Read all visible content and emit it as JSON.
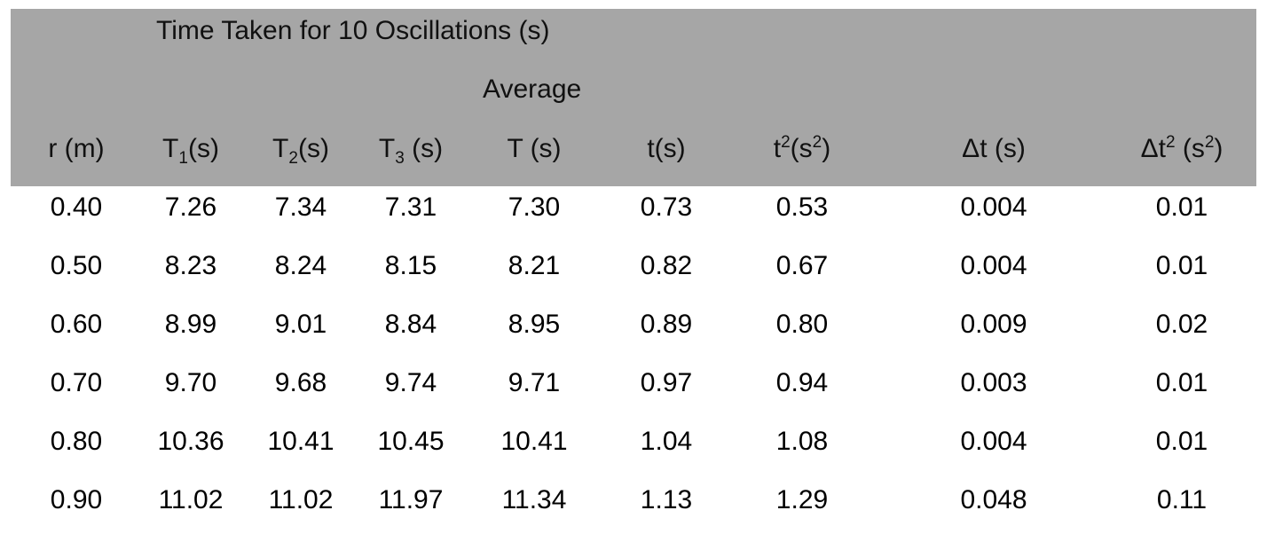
{
  "header": {
    "group_title": "Time Taken for 10 Oscillations (s)",
    "average_label": "Average",
    "columns": [
      {
        "main": "r (m)",
        "sub": "",
        "sup": "",
        "tail": "",
        "sup2": "",
        "end": ""
      },
      {
        "main": "T",
        "sub": "1",
        "sup": "",
        "tail": "(s)",
        "sup2": "",
        "end": ""
      },
      {
        "main": "T",
        "sub": "2",
        "sup": "",
        "tail": "(s)",
        "sup2": "",
        "end": ""
      },
      {
        "main": "T",
        "sub": "3",
        "sup": "",
        "tail": " (s)",
        "sup2": "",
        "end": ""
      },
      {
        "main": "T (s)",
        "sub": "",
        "sup": "",
        "tail": "",
        "sup2": "",
        "end": ""
      },
      {
        "main": "t(s)",
        "sub": "",
        "sup": "",
        "tail": "",
        "sup2": "",
        "end": ""
      },
      {
        "main": "t",
        "sub": "",
        "sup": "2",
        "tail": "(s",
        "sup2": "2",
        "end": ")"
      },
      {
        "main": "Δt (s)",
        "sub": "",
        "sup": "",
        "tail": "",
        "sup2": "",
        "end": ""
      },
      {
        "main": "Δt",
        "sub": "",
        "sup": "2",
        "tail": " (s",
        "sup2": "2",
        "end": ")"
      }
    ]
  },
  "rows": [
    [
      "0.40",
      "7.26",
      "7.34",
      "7.31",
      "7.30",
      "0.73",
      "0.53",
      "0.004",
      "0.01"
    ],
    [
      "0.50",
      "8.23",
      "8.24",
      "8.15",
      "8.21",
      "0.82",
      "0.67",
      "0.004",
      "0.01"
    ],
    [
      "0.60",
      "8.99",
      "9.01",
      "8.84",
      "8.95",
      "0.89",
      "0.80",
      "0.009",
      "0.02"
    ],
    [
      "0.70",
      "9.70",
      "9.68",
      "9.74",
      "9.71",
      "0.97",
      "0.94",
      "0.003",
      "0.01"
    ],
    [
      "0.80",
      "10.36",
      "10.41",
      "10.45",
      "10.41",
      "1.04",
      "1.08",
      "0.004",
      "0.01"
    ],
    [
      "0.90",
      "11.02",
      "11.02",
      "11.97",
      "11.34",
      "1.13",
      "1.29",
      "0.048",
      "0.11"
    ]
  ],
  "colors": {
    "header_background": "#a6a6a6",
    "text": "#111111",
    "page_background": "#ffffff"
  }
}
